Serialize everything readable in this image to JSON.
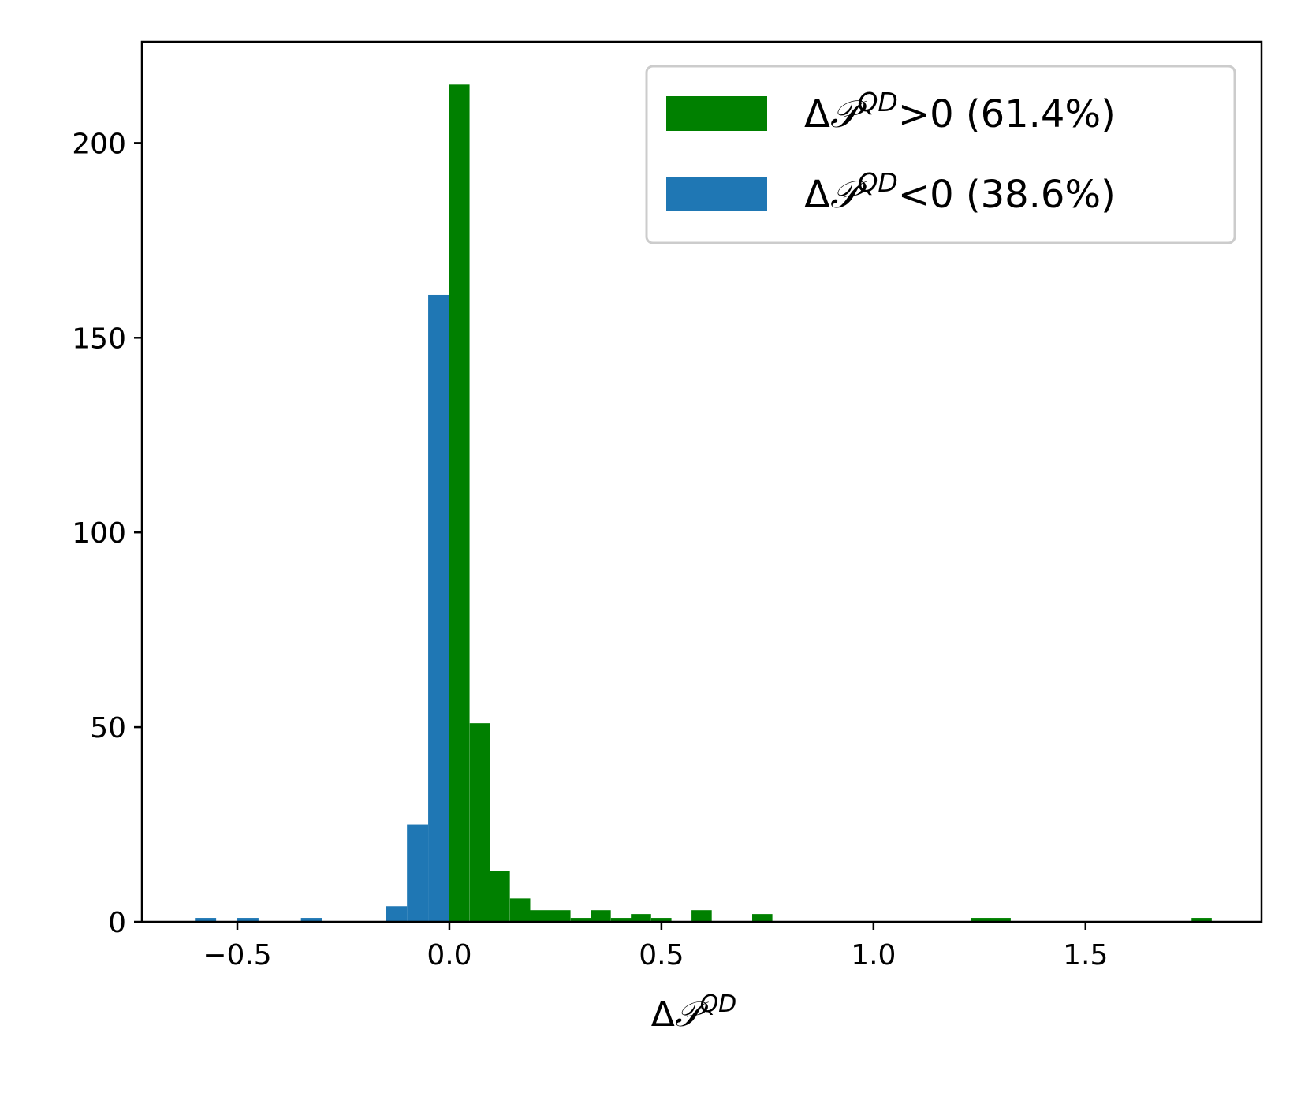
{
  "chart_data": {
    "type": "bar",
    "title": "",
    "xlabel": {
      "prefix": "Δ",
      "symbol": "𝒫",
      "superscript": "QD"
    },
    "ylabel": "",
    "xlim": [
      -0.725,
      1.915
    ],
    "ylim": [
      0,
      226
    ],
    "xticks": [
      -0.5,
      0.0,
      0.5,
      1.0,
      1.5
    ],
    "xtick_labels": [
      "−0.5",
      "0.0",
      "0.5",
      "1.0",
      "1.5"
    ],
    "yticks": [
      0,
      50,
      100,
      150,
      200
    ],
    "ytick_labels": [
      "0",
      "50",
      "100",
      "150",
      "200"
    ],
    "grid": false,
    "legend_position": "top-right",
    "series": [
      {
        "name": "ΔP^QD>0 (61.4%)",
        "legend": {
          "prefix": "Δ",
          "symbol": "𝒫",
          "superscript": "QD",
          "suffix": ">0 (61.4%)"
        },
        "color": "#008000",
        "bin_width": 0.0476,
        "bins": [
          {
            "x0": 0.0,
            "count": 215
          },
          {
            "x0": 0.048,
            "count": 51
          },
          {
            "x0": 0.095,
            "count": 13
          },
          {
            "x0": 0.143,
            "count": 6
          },
          {
            "x0": 0.19,
            "count": 3
          },
          {
            "x0": 0.238,
            "count": 3
          },
          {
            "x0": 0.286,
            "count": 1
          },
          {
            "x0": 0.333,
            "count": 3
          },
          {
            "x0": 0.381,
            "count": 1
          },
          {
            "x0": 0.428,
            "count": 2
          },
          {
            "x0": 0.476,
            "count": 1
          },
          {
            "x0": 0.571,
            "count": 3
          },
          {
            "x0": 0.714,
            "count": 2
          },
          {
            "x0": 1.229,
            "count": 1
          },
          {
            "x0": 1.276,
            "count": 1
          },
          {
            "x0": 1.75,
            "count": 1
          }
        ]
      },
      {
        "name": "ΔP^QD<0 (38.6%)",
        "legend": {
          "prefix": "Δ",
          "symbol": "𝒫",
          "superscript": "QD",
          "suffix": "<0 (38.6%)"
        },
        "color": "#1f77b4",
        "bin_width": 0.05,
        "bins": [
          {
            "x0": -0.6,
            "count": 1
          },
          {
            "x0": -0.5,
            "count": 1
          },
          {
            "x0": -0.35,
            "count": 1
          },
          {
            "x0": -0.15,
            "count": 4
          },
          {
            "x0": -0.1,
            "count": 25
          },
          {
            "x0": -0.05,
            "count": 161
          }
        ]
      }
    ]
  }
}
